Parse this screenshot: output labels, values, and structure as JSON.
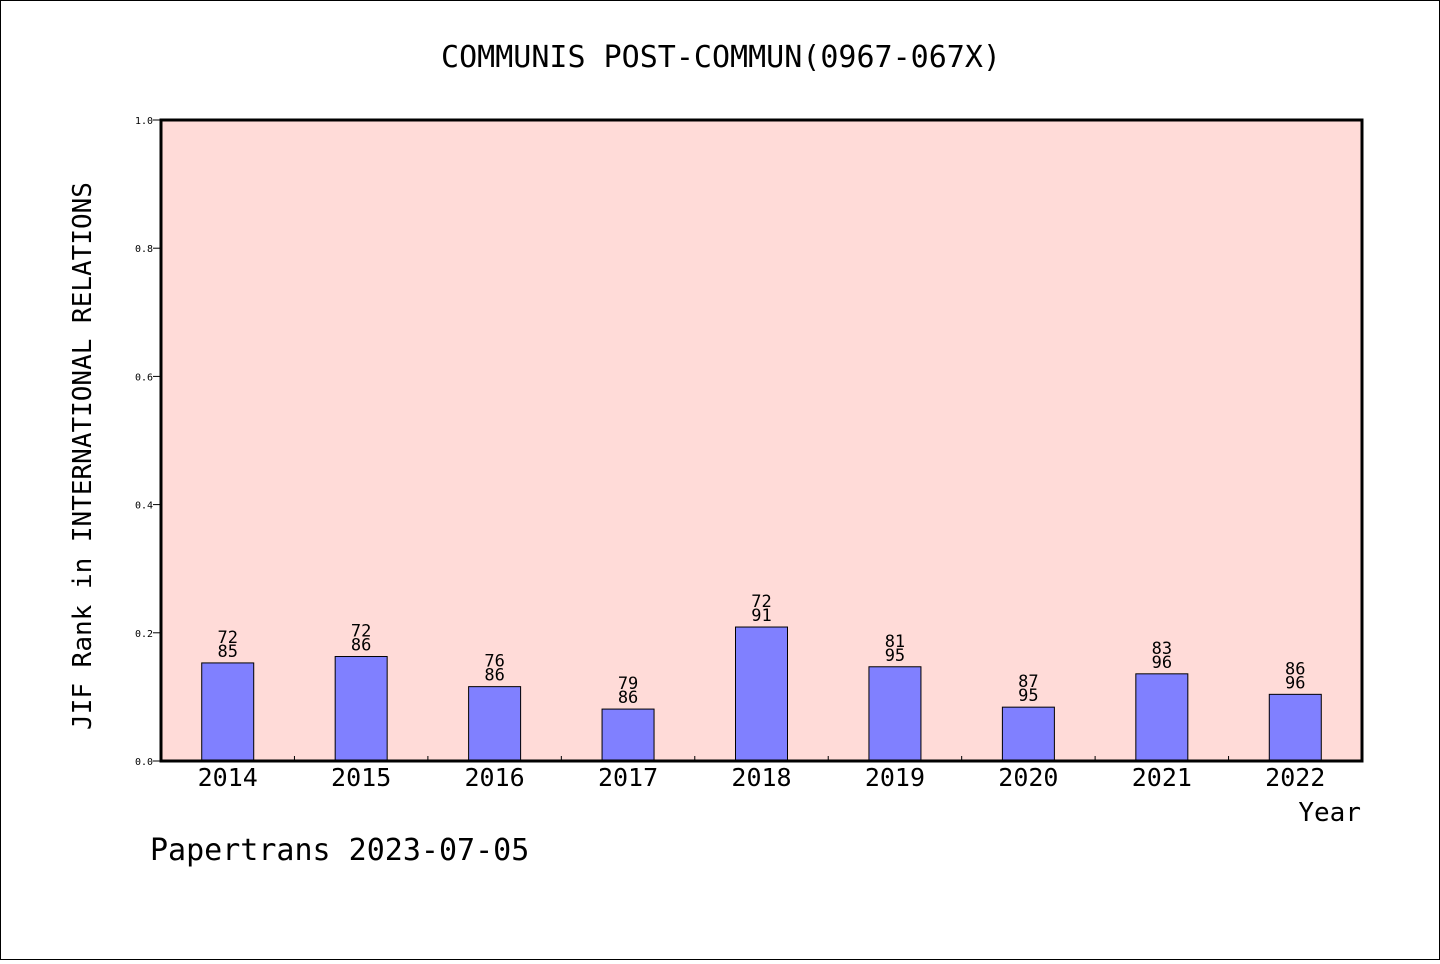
{
  "footer": {
    "source": "Papertrans 2023-07-05"
  },
  "colors": {
    "plot_background": "#ffdbd8",
    "bar_fill": "#8080ff",
    "bar_stroke": "#000000"
  },
  "chart_data": {
    "type": "bar",
    "title": "COMMUNIS POST-COMMUN(0967-067X)",
    "xlabel": "Year",
    "ylabel": "JIF Rank in INTERNATIONAL RELATIONS",
    "ylim": [
      0,
      1.0
    ],
    "yticks": [
      "0.0",
      "0.2",
      "0.4",
      "0.6",
      "0.8",
      "1.0"
    ],
    "grid": false,
    "categories": [
      "2014",
      "2015",
      "2016",
      "2017",
      "2018",
      "2019",
      "2020",
      "2021",
      "2022"
    ],
    "values": [
      0.153,
      0.163,
      0.116,
      0.081,
      0.209,
      0.147,
      0.084,
      0.136,
      0.104
    ],
    "rank_labels": [
      "72",
      "72",
      "76",
      "79",
      "72",
      "81",
      "87",
      "83",
      "86"
    ],
    "total_labels": [
      "85",
      "86",
      "86",
      "86",
      "91",
      "95",
      "95",
      "96",
      "96"
    ]
  }
}
